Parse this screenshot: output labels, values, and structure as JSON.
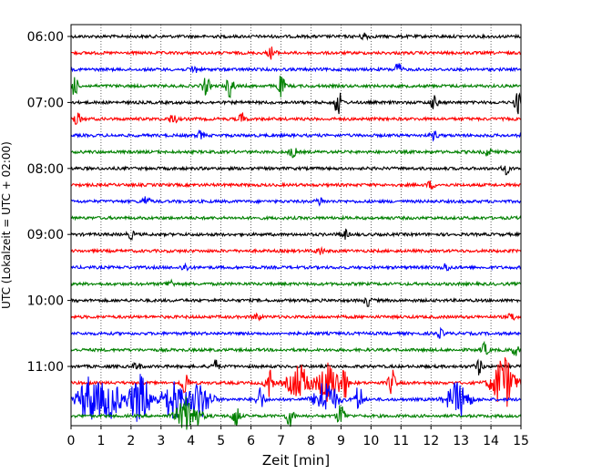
{
  "chart_data": {
    "type": "line",
    "title": "",
    "xlabel": "Zeit  [min]",
    "ylabel": "UTC (Lokalzeit = UTC + 02:00)",
    "xlim": [
      0,
      15
    ],
    "x_ticks": [
      "0",
      "1",
      "2",
      "3",
      "4",
      "5",
      "6",
      "7",
      "8",
      "9",
      "10",
      "11",
      "12",
      "13",
      "14",
      "15"
    ],
    "y_ticks": [
      "06:00",
      "07:00",
      "08:00",
      "09:00",
      "10:00",
      "11:00"
    ],
    "grid": "vertical dotted",
    "legend": "none",
    "trace_interval_minutes": 15,
    "first_trace": "06:00",
    "colors": [
      "#000000",
      "#ff0000",
      "#0000ff",
      "#008000"
    ],
    "traces": [
      {
        "start": "06:00",
        "events": [
          {
            "x": 9.8,
            "amp": 0.3
          }
        ]
      },
      {
        "start": "06:15",
        "events": [
          {
            "x": 6.7,
            "amp": 0.5
          }
        ]
      },
      {
        "start": "06:30",
        "events": [
          {
            "x": 10.9,
            "amp": 0.5
          },
          {
            "x": 4.1,
            "amp": 0.3
          }
        ]
      },
      {
        "start": "06:45",
        "events": [
          {
            "x": 0.1,
            "amp": 0.8
          },
          {
            "x": 4.5,
            "amp": 0.7
          },
          {
            "x": 5.3,
            "amp": 0.9
          },
          {
            "x": 7.0,
            "amp": 0.8
          }
        ]
      },
      {
        "start": "07:00",
        "events": [
          {
            "x": 8.9,
            "amp": 1.0
          },
          {
            "x": 12.1,
            "amp": 0.5
          },
          {
            "x": 14.9,
            "amp": 0.8
          }
        ]
      },
      {
        "start": "07:15",
        "events": [
          {
            "x": 0.2,
            "amp": 0.5
          },
          {
            "x": 3.4,
            "amp": 0.4
          },
          {
            "x": 5.7,
            "amp": 0.4
          }
        ]
      },
      {
        "start": "07:30",
        "events": [
          {
            "x": 4.3,
            "amp": 0.3
          },
          {
            "x": 12.1,
            "amp": 0.3
          }
        ]
      },
      {
        "start": "07:45",
        "events": [
          {
            "x": 7.4,
            "amp": 0.4
          },
          {
            "x": 13.9,
            "amp": 0.3
          }
        ]
      },
      {
        "start": "08:00",
        "events": [
          {
            "x": 14.5,
            "amp": 0.4
          }
        ]
      },
      {
        "start": "08:15",
        "events": [
          {
            "x": 12.0,
            "amp": 0.3
          }
        ]
      },
      {
        "start": "08:30",
        "events": [
          {
            "x": 2.5,
            "amp": 0.4
          },
          {
            "x": 8.3,
            "amp": 0.3
          }
        ]
      },
      {
        "start": "08:45",
        "events": []
      },
      {
        "start": "09:00",
        "events": [
          {
            "x": 2.0,
            "amp": 0.3
          },
          {
            "x": 9.1,
            "amp": 0.4
          }
        ]
      },
      {
        "start": "09:15",
        "events": [
          {
            "x": 8.3,
            "amp": 0.3
          }
        ]
      },
      {
        "start": "09:30",
        "events": [
          {
            "x": 3.8,
            "amp": 0.3
          },
          {
            "x": 12.5,
            "amp": 0.3
          }
        ]
      },
      {
        "start": "09:45",
        "events": [
          {
            "x": 3.3,
            "amp": 0.3
          }
        ]
      },
      {
        "start": "10:00",
        "events": [
          {
            "x": 9.9,
            "amp": 0.4
          }
        ]
      },
      {
        "start": "10:15",
        "events": [
          {
            "x": 6.2,
            "amp": 0.3
          },
          {
            "x": 14.7,
            "amp": 0.3
          }
        ]
      },
      {
        "start": "10:30",
        "events": [
          {
            "x": 12.3,
            "amp": 0.3
          }
        ]
      },
      {
        "start": "10:45",
        "events": [
          {
            "x": 13.8,
            "amp": 0.5
          },
          {
            "x": 14.8,
            "amp": 0.4
          }
        ]
      },
      {
        "start": "11:00",
        "events": [
          {
            "x": 2.2,
            "amp": 0.3
          },
          {
            "x": 4.8,
            "amp": 0.5
          },
          {
            "x": 13.6,
            "amp": 0.6
          }
        ]
      },
      {
        "start": "11:15",
        "events": [
          {
            "x": 3.8,
            "amp": 1.0
          },
          {
            "x": 6.6,
            "amp": 1.2
          },
          {
            "x": 7.6,
            "amp": 1.4
          },
          {
            "x": 8.6,
            "amp": 1.6
          },
          {
            "x": 9.1,
            "amp": 1.2
          },
          {
            "x": 10.7,
            "amp": 1.0
          },
          {
            "x": 14.4,
            "amp": 2.2
          }
        ]
      },
      {
        "start": "11:30",
        "events": [
          {
            "x": 0.6,
            "amp": 1.8
          },
          {
            "x": 1.3,
            "amp": 1.5
          },
          {
            "x": 2.3,
            "amp": 2.0
          },
          {
            "x": 3.4,
            "amp": 1.6
          },
          {
            "x": 4.3,
            "amp": 1.4
          },
          {
            "x": 6.3,
            "amp": 1.0
          },
          {
            "x": 8.5,
            "amp": 1.5
          },
          {
            "x": 9.6,
            "amp": 1.2
          },
          {
            "x": 12.9,
            "amp": 1.4
          }
        ]
      },
      {
        "start": "11:45",
        "events": [
          {
            "x": 3.9,
            "amp": 1.5
          },
          {
            "x": 5.5,
            "amp": 0.9
          },
          {
            "x": 7.3,
            "amp": 0.8
          },
          {
            "x": 9.0,
            "amp": 1.0
          }
        ]
      }
    ]
  }
}
